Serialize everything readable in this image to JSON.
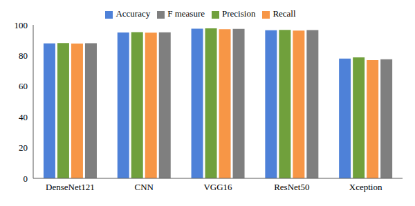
{
  "chart_data": {
    "type": "bar",
    "categories": [
      "DenseNet121",
      "CNN",
      "VGG16",
      "ResNet50",
      "Xception"
    ],
    "series": [
      {
        "name": "Accuracy",
        "color": "#4e81d8",
        "values": [
          88,
          95,
          97.5,
          96.5,
          78
        ]
      },
      {
        "name": "Precision",
        "color": "#70a03c",
        "values": [
          88.2,
          95.3,
          97.7,
          96.7,
          78.8
        ]
      },
      {
        "name": "Recall",
        "color": "#f79646",
        "values": [
          87.8,
          94.9,
          97.2,
          96.3,
          77
        ]
      },
      {
        "name": "F measure",
        "color": "#7f7f7f",
        "values": [
          88.1,
          95.2,
          97.4,
          96.6,
          77.6
        ]
      }
    ],
    "ylim": [
      0,
      100
    ],
    "yticks": [
      0,
      20,
      40,
      60,
      80,
      100
    ],
    "grid": false,
    "legend": "top"
  }
}
